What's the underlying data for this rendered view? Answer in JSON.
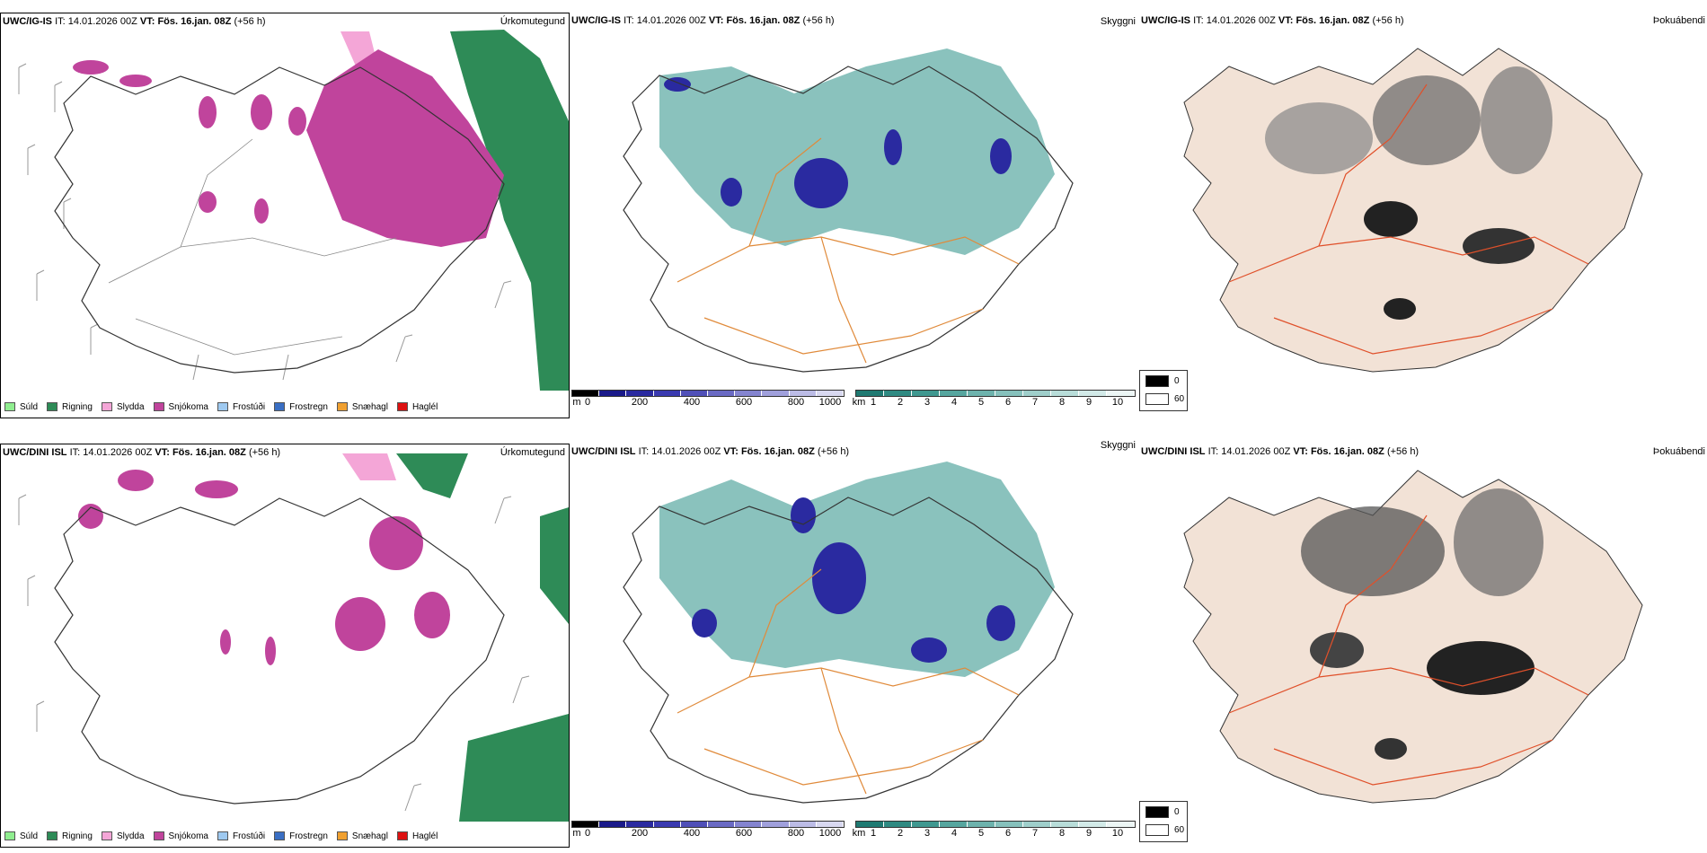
{
  "rows": [
    {
      "model": "UWC/IG-IS",
      "it_label": "IT:",
      "it_value": "14.01.2026 00Z",
      "vt_label": "VT:",
      "vt_value": "Fös. 16.jan. 08Z",
      "lead": "(+56 h)",
      "labels": [
        "Úrkomutegund",
        "Skyggni",
        "Þokuábendi"
      ]
    },
    {
      "model": "UWC/DINI ISL",
      "it_label": "IT:",
      "it_value": "14.01.2026 00Z",
      "vt_label": "VT:",
      "vt_value": "Fös. 16.jan. 08Z",
      "lead": "(+56 h)",
      "labels": [
        "Úrkomutegund",
        "Skyggni",
        "Þokuábendi"
      ]
    }
  ],
  "precip_legend": [
    {
      "label": "Súld",
      "color": "#90ee90"
    },
    {
      "label": "Rigning",
      "color": "#2e8b57"
    },
    {
      "label": "Slydda",
      "color": "#f4a6d7"
    },
    {
      "label": "Snjókoma",
      "color": "#c0449c"
    },
    {
      "label": "Frostúði",
      "color": "#9ec9f0"
    },
    {
      "label": "Frostregn",
      "color": "#3a6fc4"
    },
    {
      "label": "Snæhagl",
      "color": "#f0a030"
    },
    {
      "label": "Haglél",
      "color": "#dd1111"
    }
  ],
  "ceiling_bar": {
    "unit": "m",
    "ticks": [
      "0",
      "200",
      "400",
      "600",
      "800",
      "1000"
    ],
    "colors": [
      "#000000",
      "#1a1a8a",
      "#2a2aa0",
      "#3a3ab0",
      "#5050b8",
      "#6a6ac4",
      "#8484d0",
      "#a0a0dc",
      "#bcbce6",
      "#d8d8f0"
    ]
  },
  "vis_bar": {
    "unit": "km",
    "ticks": [
      "1",
      "2",
      "3",
      "4",
      "5",
      "6",
      "7",
      "8",
      "9",
      "10"
    ],
    "colors": [
      "#1f7a72",
      "#2f8a82",
      "#3f9890",
      "#56a69f",
      "#6db3ad",
      "#86c1bc",
      "#9fcfcb",
      "#b8ddd9",
      "#d2eae8",
      "#ecf6f5"
    ]
  },
  "fog_legend": {
    "high": "0",
    "low": "60"
  },
  "colors": {
    "land_outline": "#333333",
    "snow": "#c0449c",
    "rain": "#2e8b57",
    "sleet": "#f4a6d7",
    "road_orange": "#e08a3a",
    "road_red": "#e0502a",
    "land_fog": "#f2e2d6"
  }
}
